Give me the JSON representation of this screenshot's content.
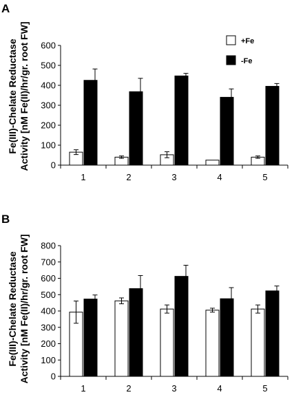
{
  "chart_data": [
    {
      "panel_label": "A",
      "type": "bar",
      "ylabel_line1": "Fe(III)-Chelate Reductase",
      "ylabel_line2": "Activity [nM Fe(II)/hr/gr. root FW]",
      "categories": [
        "1",
        "2",
        "3",
        "4",
        "5"
      ],
      "ylim": [
        0,
        600
      ],
      "yticks": [
        "0",
        "100",
        "200",
        "300",
        "400",
        "500",
        "600"
      ],
      "legend": "top-right",
      "series": [
        {
          "name": "+Fe",
          "color": "#ffffff",
          "values": [
            65,
            40,
            52,
            25,
            40
          ],
          "errors": [
            12,
            6,
            15,
            0,
            6
          ]
        },
        {
          "name": "-Fe",
          "color": "#000000",
          "values": [
            425,
            368,
            447,
            340,
            395
          ],
          "errors": [
            57,
            67,
            13,
            42,
            14
          ]
        }
      ]
    },
    {
      "panel_label": "B",
      "type": "bar",
      "ylabel_line1": "Fe(III)-Chelate Reductase",
      "ylabel_line2": "Activity [nM Fe(II)/hr/gr. root FW]",
      "categories": [
        "1",
        "2",
        "3",
        "4",
        "5"
      ],
      "ylim": [
        0,
        800
      ],
      "yticks": [
        "0",
        "100",
        "200",
        "300",
        "400",
        "500",
        "600",
        "700",
        "800"
      ],
      "legend": "none",
      "series": [
        {
          "name": "+Fe",
          "color": "#ffffff",
          "values": [
            393,
            462,
            412,
            405,
            412
          ],
          "errors": [
            68,
            18,
            25,
            12,
            25
          ]
        },
        {
          "name": "-Fe",
          "color": "#000000",
          "values": [
            473,
            537,
            612,
            475,
            523
          ],
          "errors": [
            25,
            80,
            68,
            68,
            30
          ]
        }
      ]
    }
  ]
}
